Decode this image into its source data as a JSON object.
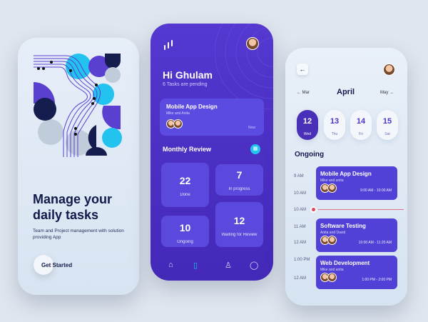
{
  "onboarding": {
    "title_line1": "Manage your",
    "title_line2": "daily tasks",
    "subtitle": "Team and Project management with solution providing App",
    "cta": "Get Started"
  },
  "home": {
    "greeting": "Hi Ghulam",
    "pending": "6 Tasks are pending",
    "featured": {
      "title": "Mobile App Design",
      "people": "Mike and Anita",
      "time": "Now"
    },
    "section": "Monthly Review",
    "stats": [
      {
        "value": "22",
        "label": "Done"
      },
      {
        "value": "7",
        "label": "In progress"
      },
      {
        "value": "10",
        "label": "Ongoing"
      },
      {
        "value": "12",
        "label": "Waiting for Review"
      }
    ],
    "nav": [
      "home-icon",
      "document-icon",
      "profile-icon",
      "bell-icon"
    ]
  },
  "calendar": {
    "prev": "Mar",
    "month": "April",
    "next": "May",
    "days": [
      {
        "num": "12",
        "name": "Wed",
        "selected": true
      },
      {
        "num": "13",
        "name": "Thu"
      },
      {
        "num": "14",
        "name": "Fri"
      },
      {
        "num": "15",
        "name": "Sat"
      }
    ],
    "section": "Ongoing",
    "times": [
      "9 AM",
      "10 AM",
      "10 AM",
      "11 AM",
      "12 AM",
      "1:00 PM",
      "12 AM"
    ],
    "events": [
      {
        "title": "Mobile App Design",
        "people": "Mike and anita",
        "time": "9:00 AM - 10:00 AM"
      },
      {
        "title": "Software Testing",
        "people": "Anita and David",
        "time": "10:00 AM - 11:20 AM"
      },
      {
        "title": "Web Development",
        "people": "Mike and anita",
        "time": "1:00 PM - 2:00 PM"
      }
    ]
  },
  "colors": {
    "primary": "#4a32c8",
    "accent": "#22c3ee",
    "dark": "#13194a",
    "now_line": "#e0455a"
  }
}
